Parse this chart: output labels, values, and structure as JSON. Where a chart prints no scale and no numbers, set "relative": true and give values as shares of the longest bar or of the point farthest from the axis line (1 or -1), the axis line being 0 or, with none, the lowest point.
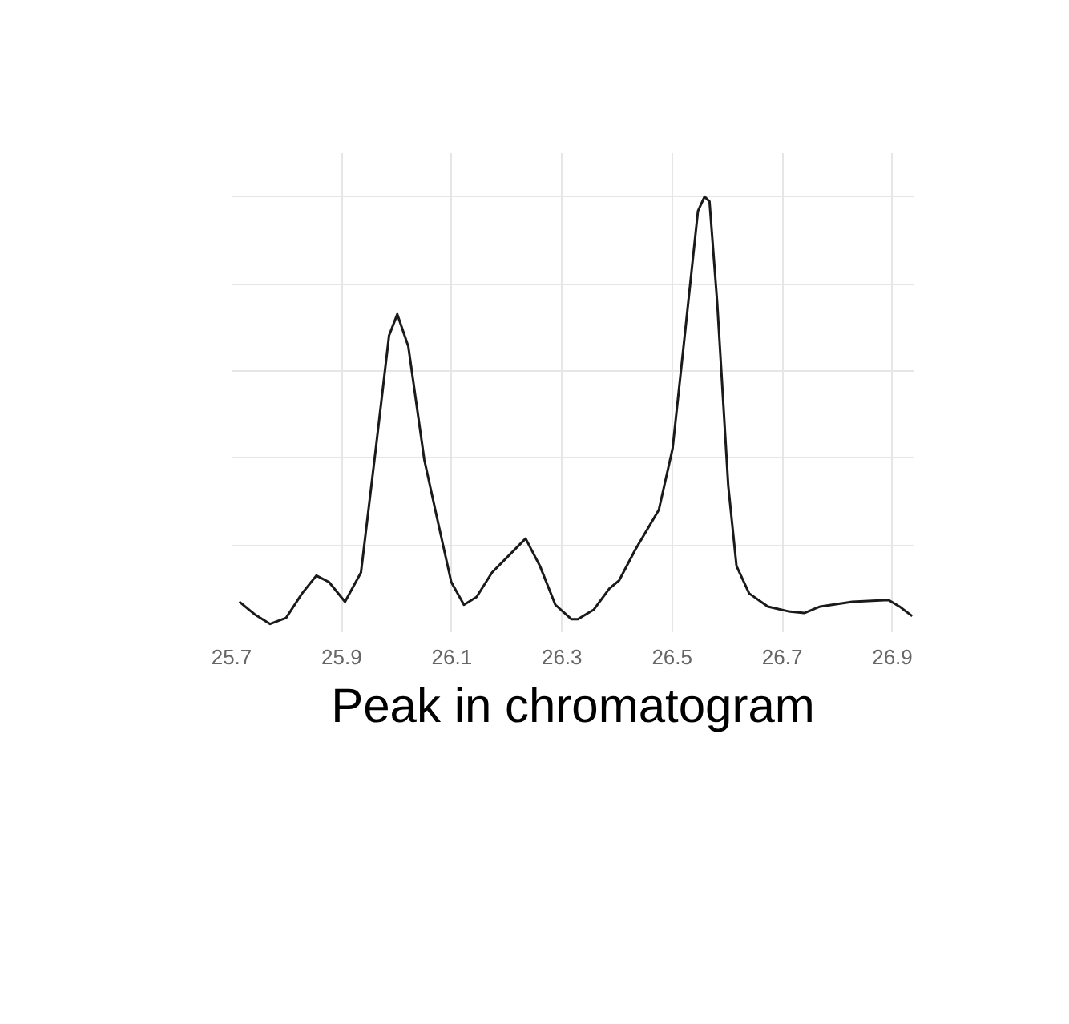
{
  "chart_data": {
    "type": "line",
    "relative": true,
    "color": "#1a1a1a",
    "xlim": [
      25.7,
      26.94
    ],
    "xticks": [
      25.7,
      25.9,
      26.1,
      26.3,
      26.5,
      26.7,
      26.9
    ],
    "grid": true,
    "line_style": "solid",
    "annotations": [
      "Peak in chromatogram"
    ],
    "x": [
      25.714,
      25.742,
      25.77,
      25.799,
      25.828,
      25.854,
      25.877,
      25.906,
      25.935,
      25.963,
      25.986,
      26.001,
      26.021,
      26.05,
      26.073,
      26.099,
      26.122,
      26.145,
      26.173,
      26.202,
      26.234,
      26.26,
      26.288,
      26.317,
      26.329,
      26.358,
      26.386,
      26.404,
      26.433,
      26.476,
      26.501,
      26.524,
      26.547,
      26.559,
      26.568,
      26.582,
      26.602,
      26.617,
      26.64,
      26.674,
      26.711,
      26.74,
      26.769,
      26.827,
      26.893,
      26.913,
      26.936
    ],
    "values": [
      0.07,
      0.041,
      0.019,
      0.033,
      0.089,
      0.13,
      0.115,
      0.07,
      0.137,
      0.433,
      0.681,
      0.73,
      0.656,
      0.396,
      0.263,
      0.115,
      0.063,
      0.081,
      0.137,
      0.174,
      0.215,
      0.152,
      0.063,
      0.03,
      0.03,
      0.052,
      0.1,
      0.119,
      0.189,
      0.281,
      0.422,
      0.693,
      0.967,
      1,
      0.989,
      0.756,
      0.337,
      0.152,
      0.089,
      0.059,
      0.048,
      0.044,
      0.059,
      0.07,
      0.074,
      0.059,
      0.037
    ]
  }
}
